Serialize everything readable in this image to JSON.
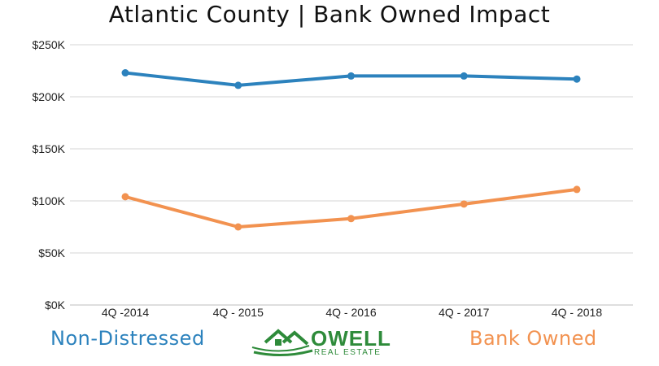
{
  "chart_data": {
    "type": "line",
    "title": "Atlantic County | Bank Owned Impact",
    "categories": [
      "4Q -2014",
      "4Q - 2015",
      "4Q - 2016",
      "4Q - 2017",
      "4Q - 2018"
    ],
    "series": [
      {
        "name": "Non-Distressed",
        "color": "#2c82bd",
        "values": [
          223000,
          211000,
          220000,
          220000,
          217000
        ]
      },
      {
        "name": "Bank Owned",
        "color": "#f29250",
        "values": [
          104000,
          75000,
          83000,
          97000,
          111000
        ]
      }
    ],
    "ylim": [
      0,
      250000
    ],
    "yticks": [
      "$0K",
      "$50K",
      "$100K",
      "$150K",
      "$200K",
      "$250K"
    ],
    "ytick_values": [
      0,
      50000,
      100000,
      150000,
      200000,
      250000
    ],
    "grid": true,
    "legend": "bottom"
  },
  "logo": {
    "name": "OWELL",
    "tagline": "REAL ESTATE",
    "color": "#2e8b3a"
  }
}
